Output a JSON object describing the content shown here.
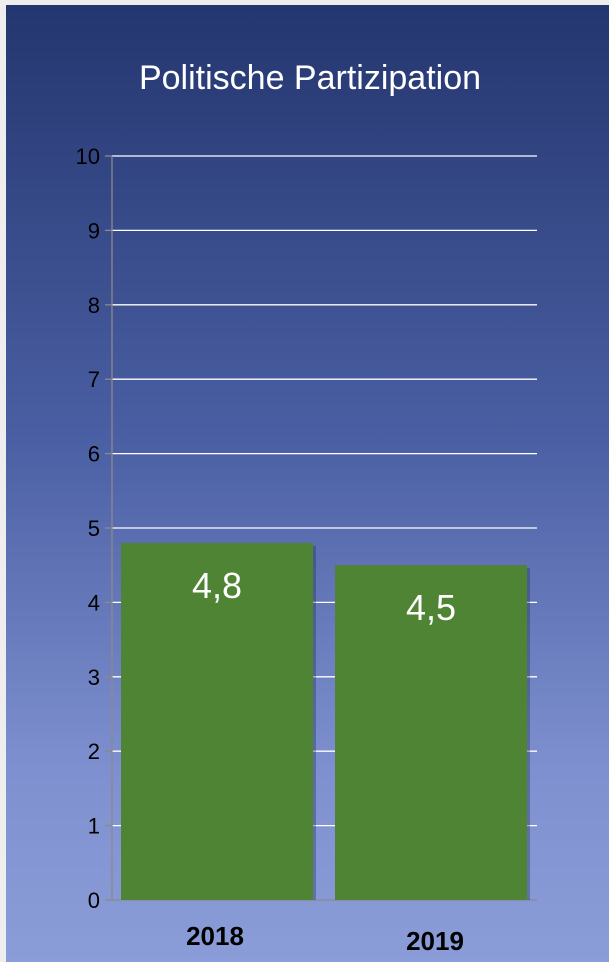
{
  "chart_data": {
    "type": "bar",
    "title": "Politische Partizipation",
    "categories": [
      "2018",
      "2019"
    ],
    "values": [
      4.8,
      4.5
    ],
    "value_labels": [
      "4,8",
      "4,5"
    ],
    "ylim": [
      0,
      10
    ],
    "yticks": [
      "0",
      "1",
      "2",
      "3",
      "4",
      "5",
      "6",
      "7",
      "8",
      "9",
      "10"
    ],
    "grid": true,
    "legend": "none",
    "colors": {
      "bar": "#4e8434",
      "grid": "#ffffff",
      "axis": "#8a8a8a",
      "title": "#ffffff",
      "value_label": "#ffffff",
      "axis_text": "#000000"
    }
  }
}
